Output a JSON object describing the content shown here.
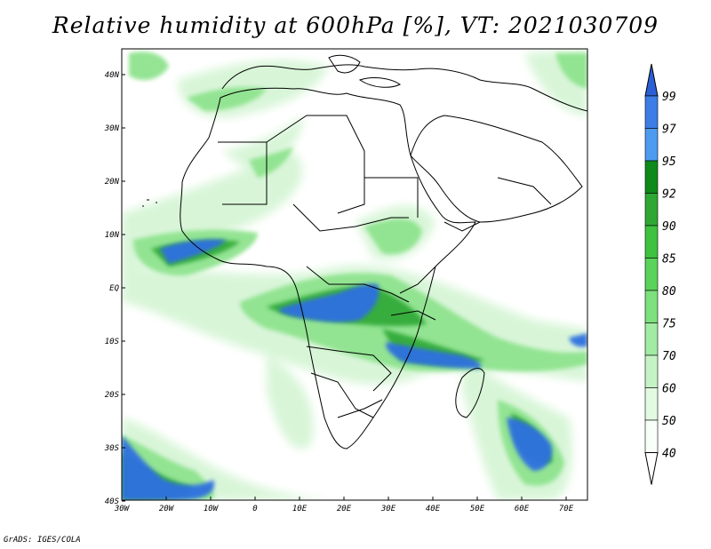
{
  "title": "Relative humidity at 600hPa [%], VT: 2021030709",
  "credit": "GrADS: IGES/COLA",
  "map": {
    "lon_range": [
      -30,
      75
    ],
    "lat_range": [
      -40,
      45
    ],
    "x_ticks": [
      "30W",
      "20W",
      "10W",
      "0",
      "10E",
      "20E",
      "30E",
      "40E",
      "50E",
      "60E",
      "70E"
    ],
    "y_ticks": [
      "40N",
      "30N",
      "20N",
      "10N",
      "EQ",
      "10S",
      "20S",
      "30S",
      "40S"
    ],
    "coastlines_color": "#000000"
  },
  "colorbar": {
    "labels": [
      "99",
      "97",
      "95",
      "92",
      "90",
      "85",
      "80",
      "75",
      "70",
      "60",
      "50",
      "40"
    ],
    "colors": [
      "#2a5fd6",
      "#3c7de6",
      "#4d9bf0",
      "#0e8a1a",
      "#2ea834",
      "#3fc23f",
      "#5ad35a",
      "#7ce07c",
      "#a2eba2",
      "#c5f3c5",
      "#e2fae2",
      "#f7fff7"
    ]
  }
}
